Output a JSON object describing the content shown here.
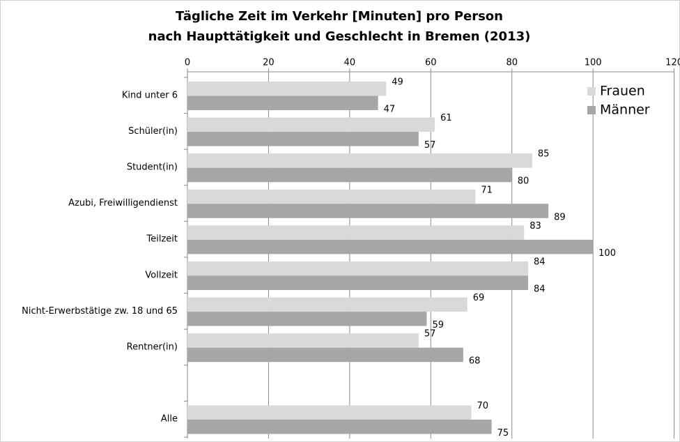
{
  "chart_data": {
    "type": "hbar",
    "title": [
      "Tägliche Zeit im Verkehr [Minuten] pro Person",
      "nach Haupttätigkeit und Geschlecht in Bremen (2013)"
    ],
    "categories": [
      "Kind unter 6",
      "Schüler(in)",
      "Student(in)",
      "Azubi, Freiwilligendienst",
      "Teilzeit",
      "Vollzeit",
      "Nicht-Erwerbstätige zw. 18 und 65",
      "Rentner(in)",
      null,
      "Alle"
    ],
    "series": [
      {
        "name": "Frauen",
        "color": "#d9d9d9",
        "values": [
          49,
          61,
          85,
          71,
          83,
          84,
          69,
          57,
          null,
          70
        ]
      },
      {
        "name": "Männer",
        "color": "#a6a6a6",
        "values": [
          47,
          57,
          80,
          89,
          100,
          84,
          59,
          68,
          null,
          75
        ]
      }
    ],
    "xlim": [
      0,
      120
    ],
    "xticks": [
      0,
      20,
      40,
      60,
      80,
      100,
      120
    ],
    "grid": true,
    "legend": "top-right"
  }
}
